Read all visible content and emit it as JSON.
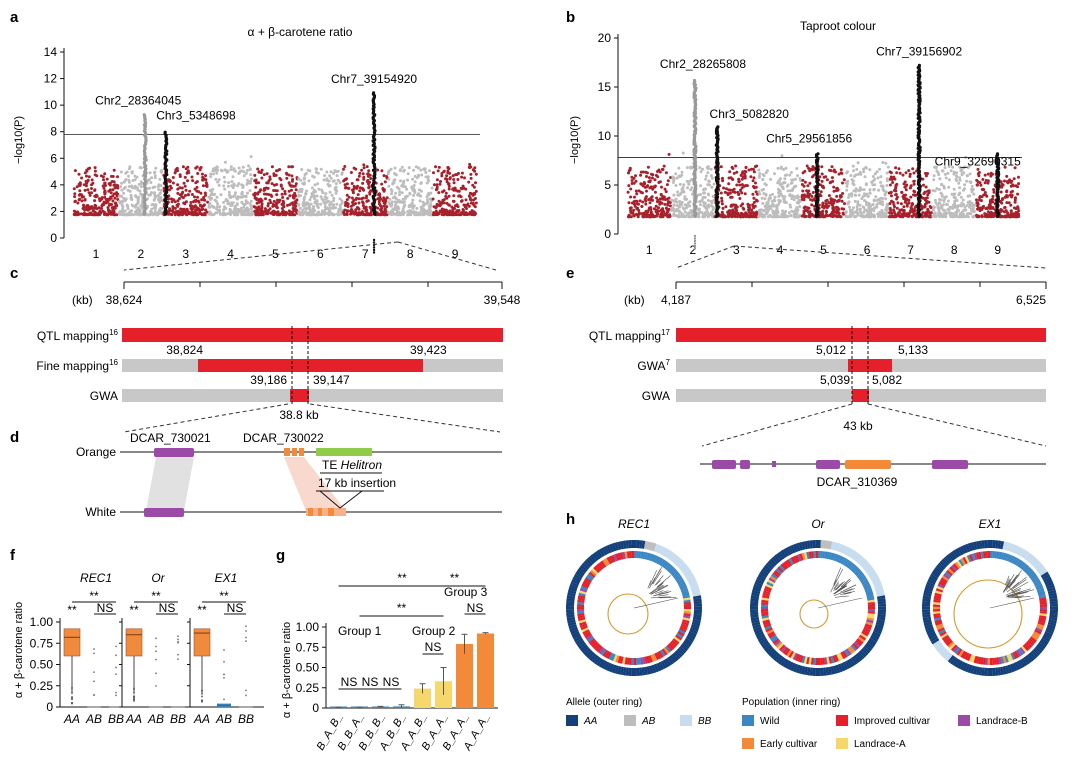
{
  "colors": {
    "red": "#a8202b",
    "grey": "#bdbdbd",
    "black": "#111111",
    "barRed": "#e5202a",
    "barGrey": "#c8c8c8",
    "orangeBox": "#f08a3c",
    "purple": "#9b4aa8",
    "green": "#8fcc4a",
    "dblue": "#13407a",
    "lblue": "#c7dcef",
    "midblue": "#3b86c4",
    "yellow": "#f5d76b",
    "orange": "#f28a3a"
  },
  "panel_labels": [
    "a",
    "b",
    "c",
    "d",
    "e",
    "f",
    "g",
    "h"
  ],
  "chart_data": [
    {
      "id": "a",
      "type": "scatter",
      "title": "α + β-carotene ratio",
      "ylabel": "−log10(P)",
      "yticks": [
        "0",
        "2",
        "4",
        "6",
        "8",
        "10",
        "12",
        "14"
      ],
      "ylim": [
        0,
        14
      ],
      "threshold": 7.8,
      "chromosomes": [
        "1",
        "2",
        "3",
        "4",
        "5",
        "6",
        "7",
        "8",
        "9"
      ],
      "peaks": [
        {
          "label": "Chr2_28364045",
          "chrom": "2",
          "value": 9.3
        },
        {
          "label": "Chr3_5348698",
          "chrom": "3",
          "value": 8.0
        },
        {
          "label": "Chr7_39154920",
          "chrom": "7",
          "value": 11.0
        }
      ]
    },
    {
      "id": "b",
      "type": "scatter",
      "title": "Taproot colour",
      "ylabel": "−log10(P)",
      "yticks": [
        "0",
        "5",
        "10",
        "15",
        "20"
      ],
      "ylim": [
        0,
        20
      ],
      "threshold": 7.8,
      "chromosomes": [
        "1",
        "2",
        "3",
        "4",
        "5",
        "6",
        "7",
        "8",
        "9"
      ],
      "peaks": [
        {
          "label": "Chr2_28265808",
          "chrom": "2",
          "value": 15.7
        },
        {
          "label": "Chr3_5082820",
          "chrom": "3",
          "value": 11.0
        },
        {
          "label": "Chr5_29561856",
          "chrom": "5",
          "value": 8.2
        },
        {
          "label": "Chr7_39156902",
          "chrom": "7",
          "value": 17.3
        },
        {
          "label": "Chr9_32690315",
          "chrom": "9",
          "value": 8.2
        }
      ]
    },
    {
      "id": "f",
      "type": "box",
      "ylabel": "α + β-carotene ratio",
      "yticks": [
        "0",
        "0.25",
        "0.50",
        "0.75",
        "1.00"
      ],
      "ylim": [
        0,
        1
      ],
      "categories": [
        "AA",
        "AB",
        "BB"
      ],
      "groups": [
        {
          "name": "REC1",
          "medians": [
            0.82,
            0.0,
            0.0
          ],
          "sig": [
            "**",
            "**",
            "NS"
          ]
        },
        {
          "name": "Or",
          "medians": [
            0.85,
            0.0,
            0.0
          ],
          "sig": [
            "**",
            "**",
            "NS"
          ]
        },
        {
          "name": "EX1",
          "medians": [
            0.87,
            0.02,
            0.0
          ],
          "sig": [
            "**",
            "**",
            "NS"
          ]
        }
      ]
    },
    {
      "id": "g",
      "type": "bar",
      "ylabel": "α + β-carotene ratio",
      "yticks": [
        "0",
        "0.25",
        "0.50",
        "0.75",
        "1.00"
      ],
      "ylim": [
        0,
        1
      ],
      "categories": [
        "B_A_B_",
        "B_B_A_",
        "B_B_B_",
        "A_B_B_",
        "A_A_B_",
        "B_A_A_",
        "B_A_A_",
        "A_A_A_"
      ],
      "values": [
        0.0,
        0.0,
        0.01,
        0.02,
        0.24,
        0.33,
        0.79,
        0.92
      ],
      "errors": [
        0.01,
        0.01,
        0.01,
        0.02,
        0.06,
        0.17,
        0.12,
        0.01
      ],
      "groups": [
        "Group 1",
        "Group 2",
        "Group 3"
      ],
      "sig_labels": [
        "**",
        "**",
        "**",
        "NS",
        "NS",
        "NS",
        "NS",
        "NS"
      ]
    }
  ],
  "panel_c": {
    "axis_unit": "(kb)",
    "start": "38,624",
    "end": "39,548",
    "rows": [
      "QTL mapping",
      "Fine mapping",
      "GWA"
    ],
    "sup_qtl": "16",
    "sup_fine": "16",
    "fine_left": "38,824",
    "fine_right": "39,423",
    "gwa_left": "39,186",
    "gwa_right": "39,147",
    "size": "38.8 kb"
  },
  "panel_d": {
    "rows": [
      "Orange",
      "White"
    ],
    "genes": [
      "DCAR_730021",
      "DCAR_730022"
    ],
    "te_prefix": "TE ",
    "te_name": "Helitron",
    "insertion": "17 kb insertion"
  },
  "panel_e": {
    "axis_unit": "(kb)",
    "start": "4,187",
    "end": "6,525",
    "rows": [
      "QTL mapping",
      "GWA",
      "GWA"
    ],
    "sup_qtl": "17",
    "sup_gwa": "7",
    "gwa1_left": "5,012",
    "gwa1_right": "5,133",
    "gwa2_left": "5,039",
    "gwa2_right": "5,082",
    "size": "43 kb",
    "gene": "DCAR_310369"
  },
  "panel_h": {
    "genes": [
      "REC1",
      "Or",
      "EX1"
    ],
    "allele_title": "Allele (outer ring)",
    "alleles": [
      "AA",
      "AB",
      "BB"
    ],
    "population_title": "Population (inner ring)",
    "populations": [
      "Wild",
      "Improved cultivar",
      "Landrace-B",
      "Early cultivar",
      "Landrace-A"
    ]
  }
}
